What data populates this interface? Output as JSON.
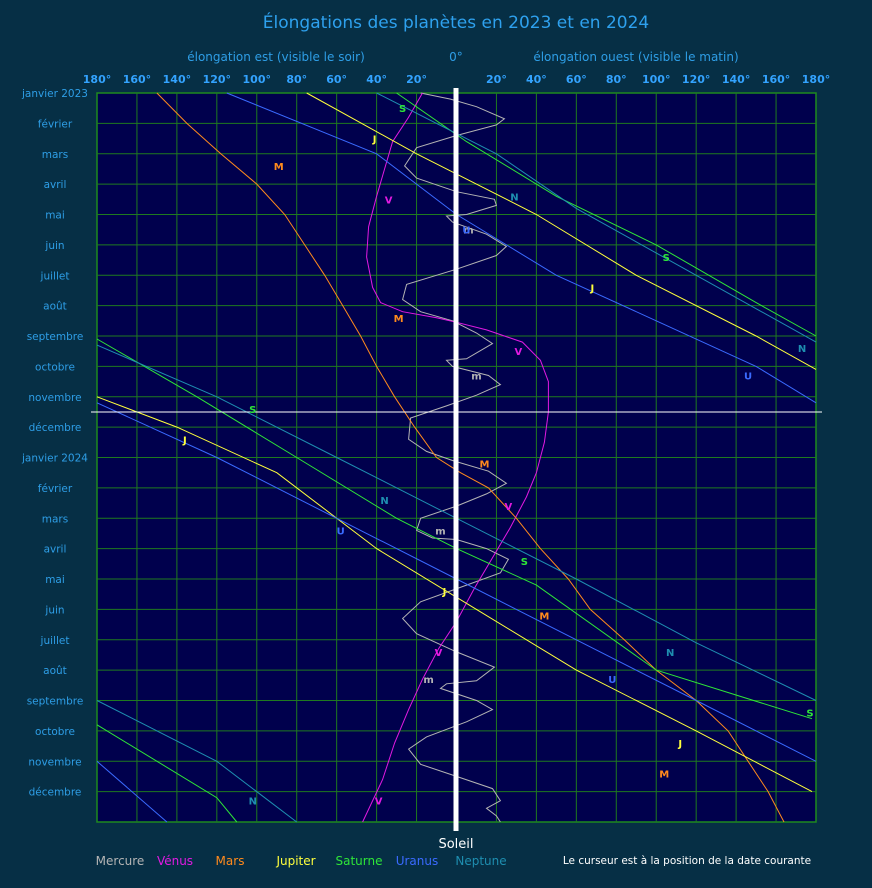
{
  "chart_data": {
    "type": "line",
    "title": "Élongations des planètes en 2023 et en 2024",
    "east_label": "élongation est (visible le soir)",
    "west_label": "élongation ouest (visible le matin)",
    "zero_label": "0°",
    "sun_label": "Soleil",
    "x_ticks": [
      {
        "v": -180,
        "label": "180°"
      },
      {
        "v": -160,
        "label": "160°"
      },
      {
        "v": -140,
        "label": "140°"
      },
      {
        "v": -120,
        "label": "120°"
      },
      {
        "v": -100,
        "label": "100°"
      },
      {
        "v": -80,
        "label": "80°"
      },
      {
        "v": -60,
        "label": "60°"
      },
      {
        "v": -40,
        "label": "40°"
      },
      {
        "v": -20,
        "label": "20°"
      },
      {
        "v": 20,
        "label": "20°"
      },
      {
        "v": 40,
        "label": "40°"
      },
      {
        "v": 60,
        "label": "60°"
      },
      {
        "v": 80,
        "label": "80°"
      },
      {
        "v": 100,
        "label": "100°"
      },
      {
        "v": 120,
        "label": "120°"
      },
      {
        "v": 140,
        "label": "140°"
      },
      {
        "v": 160,
        "label": "160°"
      },
      {
        "v": 180,
        "label": "180°"
      }
    ],
    "xlim": [
      -180,
      180
    ],
    "ylim": [
      0,
      24
    ],
    "months": [
      "janvier 2023",
      "février",
      "mars",
      "avril",
      "mai",
      "juin",
      "juillet",
      "août",
      "septembre",
      "octobre",
      "novembre",
      "décembre",
      "janvier 2024",
      "février",
      "mars",
      "avril",
      "mai",
      "juin",
      "juillet",
      "août",
      "septembre",
      "octobre",
      "novembre",
      "décembre"
    ],
    "cursor_month": 10.5,
    "grid": true,
    "legend": [
      "Mercure",
      "Vénus",
      "Mars",
      "Jupiter",
      "Saturne",
      "Uranus",
      "Neptune"
    ],
    "note": "Le curseur est à la position de la date courante",
    "series": [
      {
        "name": "Mercure",
        "letter": "m",
        "color": "#b4b4b4",
        "points": [
          [
            -18,
            0
          ],
          [
            -3,
            0.2
          ],
          [
            10,
            0.45
          ],
          [
            24,
            0.85
          ],
          [
            20,
            1.05
          ],
          [
            0,
            1.4
          ],
          [
            -20,
            1.8
          ],
          [
            -26,
            2.4
          ],
          [
            -20,
            2.8
          ],
          [
            0,
            3.25
          ],
          [
            19,
            3.5
          ],
          [
            20,
            3.7
          ],
          [
            5,
            4
          ],
          [
            -5,
            4.05
          ],
          [
            -2,
            4.25
          ],
          [
            15,
            4.65
          ],
          [
            25,
            5.05
          ],
          [
            20,
            5.35
          ],
          [
            0,
            5.8
          ],
          [
            -25,
            6.3
          ],
          [
            -27,
            6.8
          ],
          [
            -18,
            7.2
          ],
          [
            -2,
            7.5
          ],
          [
            10,
            7.9
          ],
          [
            18,
            8.25
          ],
          [
            5,
            8.75
          ],
          [
            -5,
            8.8
          ],
          [
            -2,
            9
          ],
          [
            16,
            9.3
          ],
          [
            22,
            9.6
          ],
          [
            10,
            9.95
          ],
          [
            -5,
            10.3
          ],
          [
            -23,
            10.7
          ],
          [
            -24,
            11.4
          ],
          [
            -15,
            11.8
          ],
          [
            -2,
            12.1
          ],
          [
            16,
            12.45
          ],
          [
            25,
            12.85
          ],
          [
            15,
            13.2
          ],
          [
            0,
            13.6
          ],
          [
            -18,
            14
          ],
          [
            -20,
            14.4
          ],
          [
            -12,
            14.65
          ],
          [
            0,
            14.7
          ],
          [
            15,
            15
          ],
          [
            26,
            15.35
          ],
          [
            22,
            15.8
          ],
          [
            5,
            16.2
          ],
          [
            -18,
            16.75
          ],
          [
            -27,
            17.3
          ],
          [
            -20,
            17.8
          ],
          [
            0,
            18.4
          ],
          [
            19,
            18.9
          ],
          [
            10,
            19.35
          ],
          [
            -5,
            19.45
          ],
          [
            -8,
            19.6
          ],
          [
            10,
            20
          ],
          [
            18,
            20.3
          ],
          [
            5,
            20.7
          ],
          [
            -15,
            21.2
          ],
          [
            -24,
            21.6
          ],
          [
            -18,
            22.1
          ],
          [
            0,
            22.5
          ],
          [
            18,
            22.9
          ],
          [
            22,
            23.3
          ],
          [
            15,
            23.55
          ],
          [
            20,
            23.8
          ],
          [
            22,
            24
          ]
        ]
      },
      {
        "name": "Vénus",
        "letter": "V",
        "color": "#e21ae2",
        "points": [
          [
            -17,
            0
          ],
          [
            -24,
            0.8
          ],
          [
            -32,
            1.6
          ],
          [
            -36,
            2.5
          ],
          [
            -40,
            3.4
          ],
          [
            -44,
            4.4
          ],
          [
            -45,
            5.4
          ],
          [
            -42,
            6.4
          ],
          [
            -38,
            6.9
          ],
          [
            -27,
            7.2
          ],
          [
            -10,
            7.4
          ],
          [
            0,
            7.55
          ],
          [
            15,
            7.8
          ],
          [
            33,
            8.2
          ],
          [
            42,
            8.8
          ],
          [
            46,
            9.5
          ],
          [
            46,
            10.5
          ],
          [
            44,
            11.5
          ],
          [
            40,
            12.5
          ],
          [
            35,
            13.3
          ],
          [
            27,
            14.3
          ],
          [
            18,
            15.3
          ],
          [
            9,
            16.3
          ],
          [
            0,
            17.4
          ],
          [
            -9,
            18.3
          ],
          [
            -17,
            19.3
          ],
          [
            -24,
            20.3
          ],
          [
            -31,
            21.4
          ],
          [
            -37,
            22.6
          ],
          [
            -47,
            24
          ]
        ]
      },
      {
        "name": "Mars",
        "letter": "M",
        "color": "#ff8a1d",
        "points": [
          [
            -150,
            0
          ],
          [
            -135,
            1
          ],
          [
            -118,
            2
          ],
          [
            -100,
            3
          ],
          [
            -86,
            4
          ],
          [
            -76,
            5
          ],
          [
            -66,
            6
          ],
          [
            -57,
            7
          ],
          [
            -48,
            8
          ],
          [
            -40,
            9
          ],
          [
            -31,
            10
          ],
          [
            -21,
            11
          ],
          [
            -10,
            12
          ],
          [
            2,
            12.5
          ],
          [
            16,
            13
          ],
          [
            30,
            14
          ],
          [
            42,
            15
          ],
          [
            56,
            16
          ],
          [
            67,
            17
          ],
          [
            84,
            18
          ],
          [
            100,
            19
          ],
          [
            120,
            20
          ],
          [
            136,
            21
          ],
          [
            146,
            22
          ],
          [
            156,
            23
          ],
          [
            164,
            24
          ]
        ]
      },
      {
        "name": "Jupiter",
        "letter": "J",
        "color": "#ffff3c",
        "points": [
          [
            -75,
            0
          ],
          [
            -20,
            2
          ],
          [
            40,
            4
          ],
          [
            90,
            6
          ],
          [
            150,
            8
          ],
          [
            180,
            9.1
          ],
          [
            -180,
            10
          ],
          [
            -140,
            11
          ],
          [
            -90,
            12.5
          ],
          [
            -40,
            15
          ],
          [
            10,
            17
          ],
          [
            60,
            19
          ],
          [
            120,
            21
          ],
          [
            178,
            23
          ]
        ]
      },
      {
        "name": "Saturne",
        "letter": "S",
        "color": "#2ee638",
        "points": [
          [
            -30,
            0
          ],
          [
            5,
            1.6
          ],
          [
            50,
            3.4
          ],
          [
            100,
            5
          ],
          [
            150,
            6.9
          ],
          [
            180,
            8
          ],
          [
            -180,
            8.1
          ],
          [
            -130,
            10
          ],
          [
            -80,
            12
          ],
          [
            -30,
            14
          ],
          [
            0,
            15
          ],
          [
            40,
            16.2
          ],
          [
            100,
            19
          ],
          [
            178,
            20.6
          ],
          [
            -180,
            20.8
          ],
          [
            -120,
            23.2
          ],
          [
            -110,
            24
          ]
        ]
      },
      {
        "name": "Uranus",
        "letter": "U",
        "color": "#3a6aff",
        "points": [
          [
            -115,
            0
          ],
          [
            -40,
            2
          ],
          [
            0,
            4
          ],
          [
            50,
            6
          ],
          [
            100,
            7.5
          ],
          [
            150,
            9
          ],
          [
            180,
            10.2
          ],
          [
            -180,
            10.2
          ],
          [
            -120,
            12
          ],
          [
            -60,
            14
          ],
          [
            0,
            16
          ],
          [
            60,
            18
          ],
          [
            120,
            20
          ],
          [
            180,
            22
          ],
          [
            -180,
            22
          ],
          [
            -145,
            24
          ]
        ]
      },
      {
        "name": "Neptune",
        "letter": "N",
        "color": "#1e8eb0",
        "points": [
          [
            -40,
            0
          ],
          [
            20,
            2
          ],
          [
            60,
            3.8
          ],
          [
            120,
            6
          ],
          [
            180,
            8.2
          ],
          [
            -180,
            8.3
          ],
          [
            -120,
            10
          ],
          [
            -60,
            12
          ],
          [
            0,
            14
          ],
          [
            60,
            16
          ],
          [
            120,
            18.1
          ],
          [
            180,
            20
          ],
          [
            -180,
            20
          ],
          [
            -120,
            22
          ],
          [
            -80,
            24
          ]
        ]
      }
    ],
    "labels": [
      {
        "s": 0,
        "x": 6,
        "y": 4.5
      },
      {
        "s": 0,
        "x": 10,
        "y": 9.3
      },
      {
        "s": 0,
        "x": -8,
        "y": 14.4
      },
      {
        "s": 0,
        "x": -14,
        "y": 19.3
      },
      {
        "s": 1,
        "x": -34,
        "y": 3.5
      },
      {
        "s": 1,
        "x": 31,
        "y": 8.5
      },
      {
        "s": 1,
        "x": 26,
        "y": 13.6
      },
      {
        "s": 1,
        "x": -9,
        "y": 18.4
      },
      {
        "s": 1,
        "x": -39,
        "y": 23.3
      },
      {
        "s": 2,
        "x": -89,
        "y": 2.4
      },
      {
        "s": 2,
        "x": -29,
        "y": 7.4
      },
      {
        "s": 2,
        "x": 14,
        "y": 12.2
      },
      {
        "s": 2,
        "x": 44,
        "y": 17.2
      },
      {
        "s": 2,
        "x": 104,
        "y": 22.4
      },
      {
        "s": 3,
        "x": -41,
        "y": 1.5
      },
      {
        "s": 3,
        "x": 68,
        "y": 6.4
      },
      {
        "s": 3,
        "x": -136,
        "y": 11.4
      },
      {
        "s": 3,
        "x": -6,
        "y": 16.4
      },
      {
        "s": 3,
        "x": 112,
        "y": 21.4
      },
      {
        "s": 4,
        "x": -27,
        "y": 0.5
      },
      {
        "s": 4,
        "x": 105,
        "y": 5.4
      },
      {
        "s": 4,
        "x": -102,
        "y": 10.4
      },
      {
        "s": 4,
        "x": 34,
        "y": 15.4
      },
      {
        "s": 4,
        "x": 177,
        "y": 20.4
      },
      {
        "s": 5,
        "x": 5,
        "y": 4.5
      },
      {
        "s": 5,
        "x": 146,
        "y": 9.3
      },
      {
        "s": 5,
        "x": -58,
        "y": 14.4
      },
      {
        "s": 5,
        "x": 78,
        "y": 19.3
      },
      {
        "s": 6,
        "x": 29,
        "y": 3.4
      },
      {
        "s": 6,
        "x": 173,
        "y": 8.4
      },
      {
        "s": 6,
        "x": -36,
        "y": 13.4
      },
      {
        "s": 6,
        "x": 107,
        "y": 18.4
      },
      {
        "s": 6,
        "x": -102,
        "y": 23.3
      }
    ]
  }
}
